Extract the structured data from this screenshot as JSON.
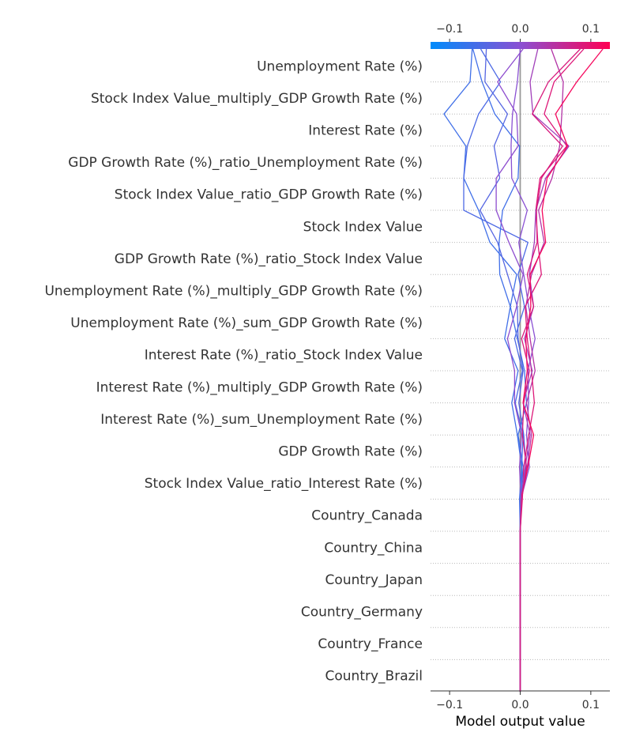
{
  "chart_data": {
    "type": "decision-plot",
    "xlabel": "Model output value",
    "xlim": [
      -0.127,
      0.127
    ],
    "xticks": [
      -0.1,
      0.0,
      0.1
    ],
    "xtick_labels": [
      "−0.1",
      "0.0",
      "0.1"
    ],
    "base_value": 0.0,
    "colorbar": {
      "range": [
        -0.127,
        0.127
      ],
      "colors": [
        "#008bfb",
        "#8a50d3",
        "#ff0052"
      ],
      "position": "top"
    },
    "features": [
      "Unemployment Rate (%)",
      "Stock Index Value_multiply_GDP Growth Rate (%)",
      "Interest Rate (%)",
      "GDP Growth Rate (%)_ratio_Unemployment Rate (%)",
      "Stock Index Value_ratio_GDP Growth Rate (%)",
      "Stock Index Value",
      "GDP Growth Rate (%)_ratio_Stock Index Value",
      "Unemployment Rate (%)_multiply_GDP Growth Rate (%)",
      "Unemployment Rate (%)_sum_GDP Growth Rate (%)",
      "Interest Rate (%)_ratio_Stock Index Value",
      "Interest Rate (%)_multiply_GDP Growth Rate (%)",
      "Interest Rate (%)_sum_Unemployment Rate (%)",
      "GDP Growth Rate (%)",
      "Stock Index Value_ratio_Interest Rate (%)",
      "Country_Canada",
      "Country_China",
      "Country_Japan",
      "Country_Germany",
      "Country_France",
      "Country_Brazil"
    ],
    "series": [
      {
        "values": [
          0,
          0,
          0,
          0,
          0,
          0,
          0.001,
          0.004,
          -0.003,
          0.009,
          0.006,
          -0.004,
          -0.014,
          -0.005,
          -0.043,
          -0.059,
          -0.08,
          -0.077,
          -0.108,
          -0.071,
          -0.068
        ]
      },
      {
        "values": [
          0,
          0,
          0,
          0,
          0,
          0,
          0.001,
          0.008,
          0.005,
          -0.002,
          0.004,
          -0.003,
          -0.004,
          -0.018,
          -0.032,
          -0.057,
          -0.029,
          -0.037,
          -0.018,
          -0.05,
          -0.048
        ]
      },
      {
        "values": [
          0,
          0,
          0,
          0,
          0,
          0,
          0.002,
          0.002,
          0.004,
          -0.007,
          0.003,
          -0.008,
          0.006,
          -0.003,
          0.011,
          -0.08,
          -0.08,
          -0.075,
          -0.059,
          -0.028,
          -0.056
        ]
      },
      {
        "values": [
          0,
          0,
          0,
          0,
          0,
          0,
          0.001,
          0.013,
          0.009,
          0.012,
          0.011,
          0.021,
          0.012,
          0.005,
          -0.002,
          0.01,
          -0.012,
          -0.013,
          -0.011,
          -0.004,
          0.0
        ]
      },
      {
        "values": [
          0,
          0,
          0,
          0,
          0,
          0,
          0.002,
          0.01,
          0.016,
          0.009,
          0.021,
          0.014,
          0.008,
          0.016,
          0.034,
          0.026,
          0.045,
          0.056,
          0.059,
          0.061,
          0.044
        ]
      },
      {
        "values": [
          0,
          0,
          0,
          0,
          0,
          0,
          0.003,
          0.005,
          0.012,
          0.02,
          0.016,
          0.01,
          0.007,
          0.03,
          0.025,
          0.022,
          0.028,
          0.066,
          0.034,
          0.048,
          0.09
        ]
      },
      {
        "values": [
          0,
          0,
          0,
          0,
          0,
          0,
          0.001,
          0.007,
          0.014,
          0.004,
          0.017,
          0.006,
          0.019,
          0.013,
          0.02,
          0.022,
          0.036,
          0.069,
          0.018,
          0.014,
          0.025
        ]
      },
      {
        "values": [
          0,
          0,
          0,
          0,
          0,
          0,
          -0.001,
          0.002,
          -0.004,
          -0.012,
          -0.003,
          -0.022,
          -0.014,
          -0.029,
          -0.03,
          -0.025,
          -0.003,
          -0.001,
          -0.036,
          -0.054,
          -0.067
        ]
      },
      {
        "values": [
          0,
          0,
          0,
          0,
          0,
          0,
          0.001,
          0.011,
          0.019,
          0.004,
          0.01,
          0.008,
          0.015,
          0.014,
          0.036,
          0.031,
          0.038,
          0.067,
          0.05,
          0.08,
          0.117
        ]
      },
      {
        "values": [
          0,
          0,
          0,
          0,
          0,
          0,
          0.001,
          -0.001,
          0.002,
          -0.008,
          -0.008,
          -0.018,
          -0.005,
          0.004,
          -0.016,
          -0.034,
          -0.034,
          -0.003,
          -0.005,
          -0.032,
          0.004
        ]
      },
      {
        "values": [
          0,
          0,
          0,
          0,
          0,
          0,
          0.002,
          0.009,
          0.003,
          0.005,
          0.013,
          0.002,
          0.019,
          0.01,
          0.024,
          0.023,
          0.03,
          0.06,
          0.017,
          0.04,
          0.085
        ]
      }
    ]
  }
}
